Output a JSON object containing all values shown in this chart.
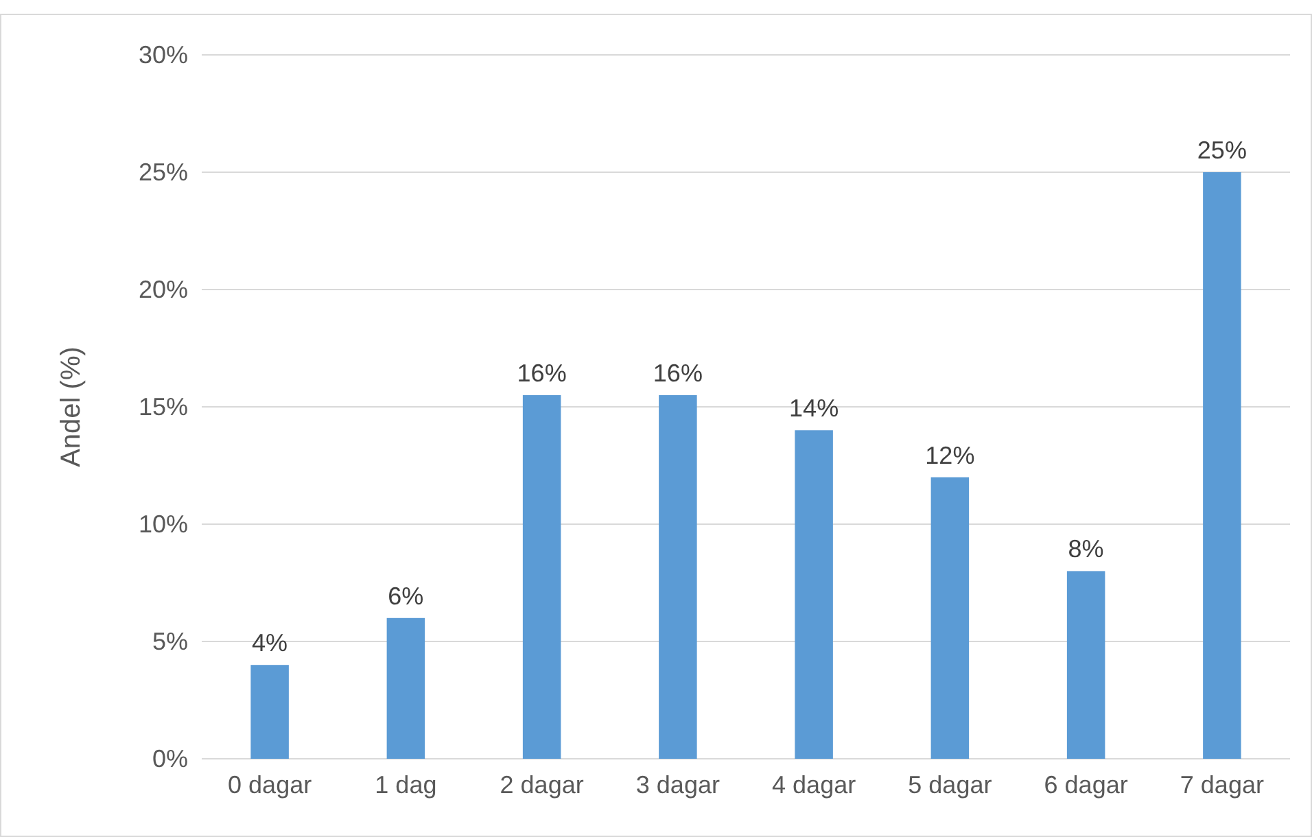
{
  "chart_data": {
    "type": "bar",
    "ylabel": "Andel (%)",
    "categories": [
      "0 dagar",
      "1 dag",
      "2 dagar",
      "3 dagar",
      "4 dagar",
      "5 dagar",
      "6 dagar",
      "7 dagar"
    ],
    "values": [
      4,
      6,
      15.5,
      15.5,
      14,
      12,
      8,
      25
    ],
    "value_labels": [
      "4%",
      "6%",
      "16%",
      "16%",
      "14%",
      "12%",
      "8%",
      "25%"
    ],
    "color": "#5b9bd5",
    "ylim": [
      0,
      30
    ],
    "yticks": [
      {
        "value": 0,
        "label": "0%"
      },
      {
        "value": 5,
        "label": "5%"
      },
      {
        "value": 10,
        "label": "10%"
      },
      {
        "value": 15,
        "label": "15%"
      },
      {
        "value": 20,
        "label": "20%"
      },
      {
        "value": 25,
        "label": "25%"
      },
      {
        "value": 30,
        "label": "30%"
      }
    ],
    "grid": "y"
  }
}
